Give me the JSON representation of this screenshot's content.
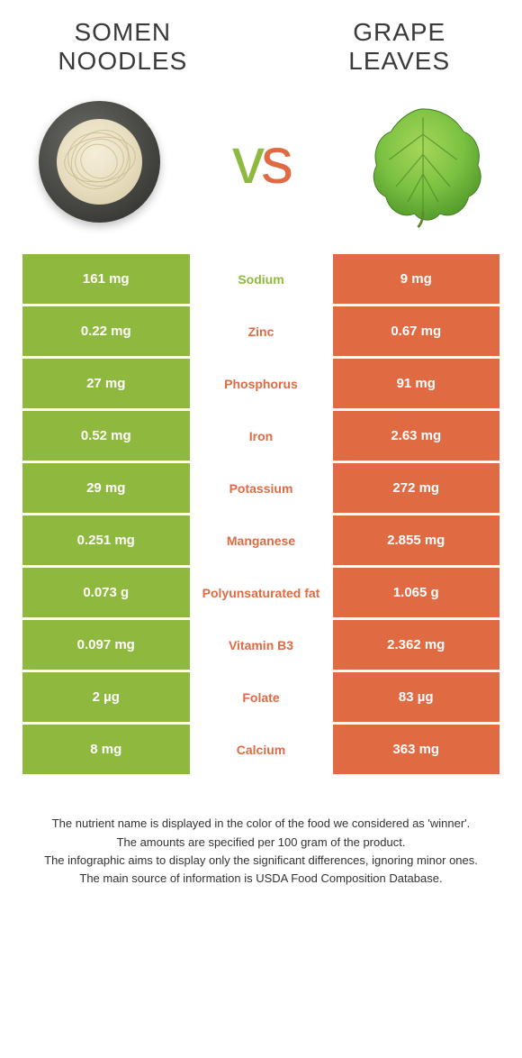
{
  "left_title": "Somen noodles",
  "right_title": "Grape leaves",
  "vs_v": "v",
  "vs_s": "s",
  "colors": {
    "left": "#8fb93e",
    "right": "#e06a42",
    "text": "#333333",
    "bg": "#ffffff"
  },
  "font_sizes": {
    "title": 28,
    "vs": 72,
    "cell": 15,
    "nutrient": 14,
    "footnote": 13
  },
  "rows": [
    {
      "left": "161 mg",
      "label": "Sodium",
      "right": "9 mg",
      "winner": "left"
    },
    {
      "left": "0.22 mg",
      "label": "Zinc",
      "right": "0.67 mg",
      "winner": "right"
    },
    {
      "left": "27 mg",
      "label": "Phosphorus",
      "right": "91 mg",
      "winner": "right"
    },
    {
      "left": "0.52 mg",
      "label": "Iron",
      "right": "2.63 mg",
      "winner": "right"
    },
    {
      "left": "29 mg",
      "label": "Potassium",
      "right": "272 mg",
      "winner": "right"
    },
    {
      "left": "0.251 mg",
      "label": "Manganese",
      "right": "2.855 mg",
      "winner": "right"
    },
    {
      "left": "0.073 g",
      "label": "Polyunsaturated fat",
      "right": "1.065 g",
      "winner": "right"
    },
    {
      "left": "0.097 mg",
      "label": "Vitamin B3",
      "right": "2.362 mg",
      "winner": "right"
    },
    {
      "left": "2 µg",
      "label": "Folate",
      "right": "83 µg",
      "winner": "right"
    },
    {
      "left": "8 mg",
      "label": "Calcium",
      "right": "363 mg",
      "winner": "right"
    }
  ],
  "footnotes": [
    "The nutrient name is displayed in the color of the food we considered as 'winner'.",
    "The amounts are specified per 100 gram of the product.",
    "The infographic aims to display only the significant differences, ignoring minor ones.",
    "The main source of information is USDA Food Composition Database."
  ]
}
